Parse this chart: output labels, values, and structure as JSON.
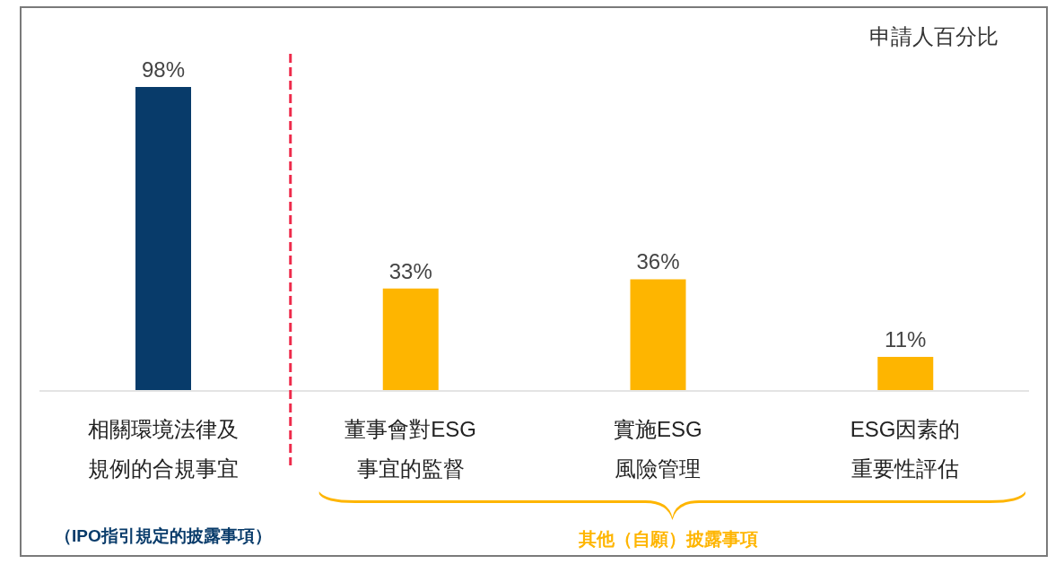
{
  "chart_data": {
    "type": "bar",
    "ylabel": "申請人百分比",
    "categories": [
      "相關環境法律及規例的合規事宜",
      "董事會對ESG事宜的監督",
      "實施ESG風險管理",
      "ESG因素的重要性評估"
    ],
    "values": [
      98,
      33,
      36,
      11
    ],
    "colors": [
      "#083b6a",
      "#feb500",
      "#feb500",
      "#feb500"
    ],
    "value_labels": [
      "98%",
      "33%",
      "36%",
      "11%"
    ],
    "annotations": [
      "（IPO指引規定的披露事項）",
      "其他（自願）披露事項"
    ],
    "tick_labels": "x"
  }
}
